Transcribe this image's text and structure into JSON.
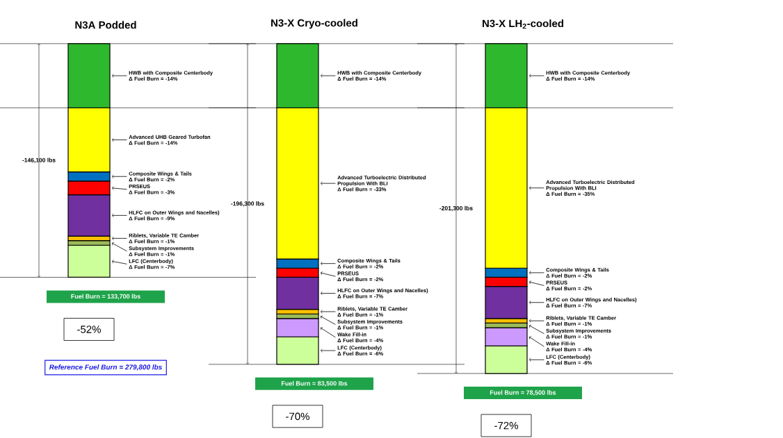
{
  "chart_data": [
    {
      "type": "bar",
      "stacked": true,
      "title": "N3A Podded",
      "categories": [
        null
      ],
      "series": [
        {
          "name": "HWB with Composite Centerbody",
          "color": "#2eb82e",
          "values": [
            -14
          ],
          "value_labels": [
            "Δ Fuel Burn = -14%"
          ]
        },
        {
          "name": "Advanced UHB Geared Turbofan",
          "color": "#ffff00",
          "values": [
            -14
          ],
          "value_labels": [
            "Δ Fuel Burn = -14%"
          ]
        },
        {
          "name": "Composite Wings & Tails",
          "color": "#0070c0",
          "values": [
            -2
          ],
          "value_labels": [
            "Δ Fuel Burn = -2%"
          ]
        },
        {
          "name": "PRSEUS",
          "color": "#ff0000",
          "values": [
            -3
          ],
          "value_labels": [
            "Δ Fuel Burn = -3%"
          ]
        },
        {
          "name": "HLFC on Outer Wings and Nacelles)",
          "color": "#7030a0",
          "values": [
            -9
          ],
          "value_labels": [
            "Δ Fuel Burn = -9%"
          ]
        },
        {
          "name": "Riblets, Variable TE Camber",
          "color": "#ffc000",
          "values": [
            -1
          ],
          "value_labels": [
            "Δ Fuel Burn = -1%"
          ]
        },
        {
          "name": "Subsystem Improvements",
          "color": "#9bbb59",
          "values": [
            -1
          ],
          "value_labels": [
            "Δ Fuel Burn = -1%"
          ]
        },
        {
          "name": "LFC (Centerbody)",
          "color": "#ccff99",
          "values": [
            -7
          ],
          "value_labels": [
            "Δ Fuel Burn = -7%"
          ]
        }
      ],
      "ref_lines": [
        {
          "axis": "y",
          "value": 0
        },
        {
          "axis": "y",
          "value": -14
        },
        {
          "axis": "y",
          "value": -51
        }
      ],
      "annotations": [
        "-146,100 lbs",
        "Fuel Burn = 133,700 lbs",
        "-52%",
        "Reference Fuel Burn = 279,800 lbs"
      ]
    },
    {
      "type": "bar",
      "stacked": true,
      "title": "N3-X Cryo-cooled",
      "categories": [
        null
      ],
      "series": [
        {
          "name": "HWB with Composite Centerbody",
          "color": "#2eb82e",
          "values": [
            -14
          ],
          "value_labels": [
            "Δ Fuel Burn = -14%"
          ]
        },
        {
          "name": "Advanced Turboelectric Distributed Propulsion With BLI",
          "color": "#ffff00",
          "values": [
            -33
          ],
          "value_labels": [
            "Δ Fuel Burn = -33%"
          ]
        },
        {
          "name": "Composite Wings & Tails",
          "color": "#0070c0",
          "values": [
            -2
          ],
          "value_labels": [
            "Δ Fuel Burn = -2%"
          ]
        },
        {
          "name": "PRSEUS",
          "color": "#ff0000",
          "values": [
            -2
          ],
          "value_labels": [
            "Δ Fuel Burn = -2%"
          ]
        },
        {
          "name": "HLFC on Outer Wings and Nacelles)",
          "color": "#7030a0",
          "values": [
            -7
          ],
          "value_labels": [
            "Δ Fuel Burn = -7%"
          ]
        },
        {
          "name": "Riblets, Variable TE Camber",
          "color": "#ffc000",
          "values": [
            -1
          ],
          "value_labels": [
            "Δ Fuel Burn = -1%"
          ]
        },
        {
          "name": "Subsystem Improvements",
          "color": "#9bbb59",
          "values": [
            -1
          ],
          "value_labels": [
            "Δ Fuel Burn = -1%"
          ]
        },
        {
          "name": "Wake Fill-in",
          "color": "#cc99ff",
          "values": [
            -4
          ],
          "value_labels": [
            "Δ Fuel Burn = -4%"
          ]
        },
        {
          "name": "LFC (Centerbody)",
          "color": "#ccff99",
          "values": [
            -6
          ],
          "value_labels": [
            "Δ Fuel Burn = -6%"
          ]
        }
      ],
      "ref_lines": [
        {
          "axis": "y",
          "value": 0
        },
        {
          "axis": "y",
          "value": -14
        },
        {
          "axis": "y",
          "value": -70
        }
      ],
      "annotations": [
        "-196,300 lbs",
        "Fuel Burn = 83,500 lbs",
        "-70%"
      ]
    },
    {
      "type": "bar",
      "stacked": true,
      "title": "N3-X LH$_{2}$-cooled",
      "categories": [
        null
      ],
      "series": [
        {
          "name": "HWB with Composite Centerbody",
          "color": "#2eb82e",
          "values": [
            -14
          ],
          "value_labels": [
            "Δ Fuel Burn = -14%"
          ]
        },
        {
          "name": "Advanced Turboelectric Distributed Propulsion With BLI",
          "color": "#ffff00",
          "values": [
            -35
          ],
          "value_labels": [
            "Δ Fuel Burn = -35%"
          ]
        },
        {
          "name": "Composite Wings & Tails",
          "color": "#0070c0",
          "values": [
            -2
          ],
          "value_labels": [
            "Δ Fuel Burn = -2%"
          ]
        },
        {
          "name": "PRSEUS",
          "color": "#ff0000",
          "values": [
            -2
          ],
          "value_labels": [
            "Δ Fuel Burn = -2%"
          ]
        },
        {
          "name": "HLFC on Outer Wings and Nacelles)",
          "color": "#7030a0",
          "values": [
            -7
          ],
          "value_labels": [
            "Δ Fuel Burn = -7%"
          ]
        },
        {
          "name": "Riblets, Variable TE Camber",
          "color": "#ffc000",
          "values": [
            -1
          ],
          "value_labels": [
            "Δ Fuel Burn = -1%"
          ]
        },
        {
          "name": "Subsystem Improvements",
          "color": "#9bbb59",
          "values": [
            -1
          ],
          "value_labels": [
            "Δ Fuel Burn = -1%"
          ]
        },
        {
          "name": "Wake Fill-in",
          "color": "#cc99ff",
          "values": [
            -4
          ],
          "value_labels": [
            "Δ Fuel Burn = -4%"
          ]
        },
        {
          "name": "LFC (Centerbody)",
          "color": "#ccff99",
          "values": [
            -6
          ],
          "value_labels": [
            "Δ Fuel Burn = -6%"
          ]
        }
      ],
      "ref_lines": [
        {
          "axis": "y",
          "value": 0
        },
        {
          "axis": "y",
          "value": -14
        },
        {
          "axis": "y",
          "value": -72
        }
      ],
      "annotations": [
        "-201,300 lbs",
        "Fuel Burn = 78,500 lbs",
        "-72%"
      ]
    }
  ]
}
